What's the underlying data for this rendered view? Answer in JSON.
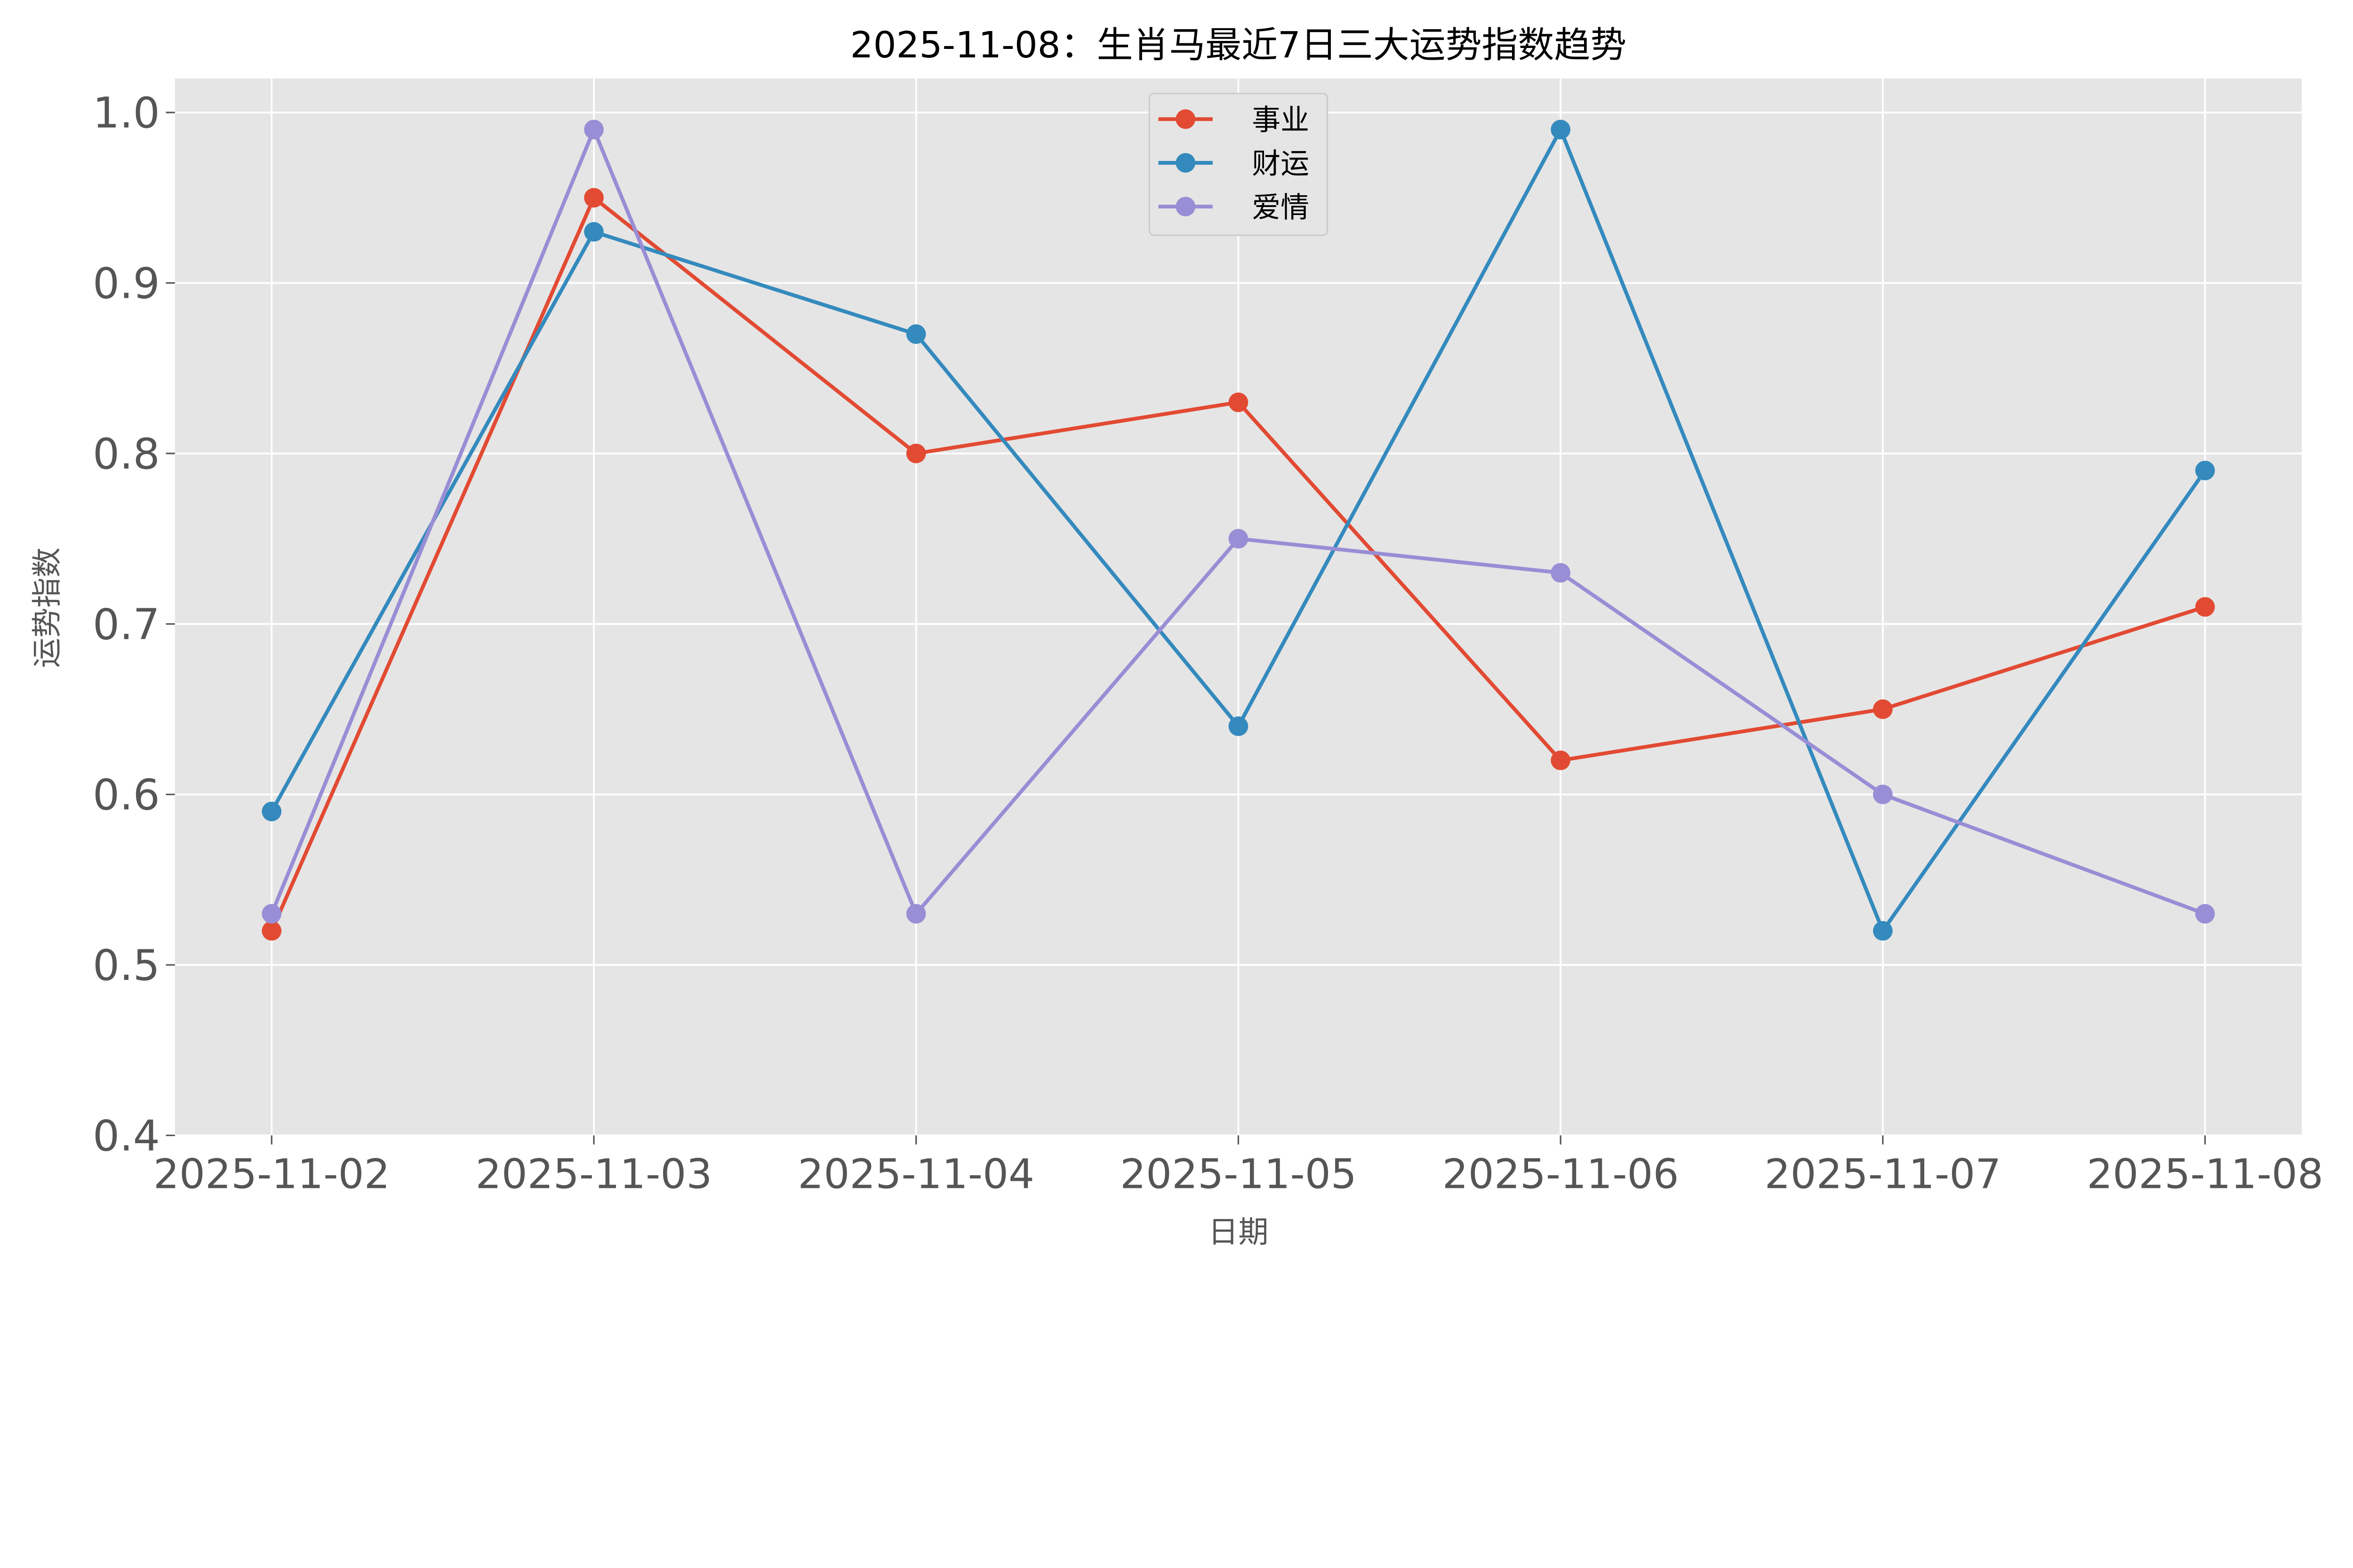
{
  "chart_data": {
    "type": "line",
    "title": "2025-11-08：生肖马最近7日三大运势指数趋势",
    "xlabel": "日期",
    "ylabel": "运势指数",
    "categories": [
      "2025-11-02",
      "2025-11-03",
      "2025-11-04",
      "2025-11-05",
      "2025-11-06",
      "2025-11-07",
      "2025-11-08"
    ],
    "ylim": [
      0.4,
      1.02
    ],
    "yticks": [
      "0.4",
      "0.5",
      "0.6",
      "0.7",
      "0.8",
      "0.9",
      "1.0"
    ],
    "grid": true,
    "legend_position": "top-center",
    "series": [
      {
        "name": "事业",
        "color": "#E24A33",
        "values": [
          0.52,
          0.95,
          0.8,
          0.83,
          0.62,
          0.65,
          0.71
        ]
      },
      {
        "name": "财运",
        "color": "#348ABD",
        "values": [
          0.59,
          0.93,
          0.87,
          0.64,
          0.99,
          0.52,
          0.79
        ]
      },
      {
        "name": "爱情",
        "color": "#988ED5",
        "values": [
          0.53,
          0.99,
          0.53,
          0.75,
          0.73,
          0.6,
          0.53
        ]
      }
    ],
    "background_color": "#E5E5E5"
  }
}
